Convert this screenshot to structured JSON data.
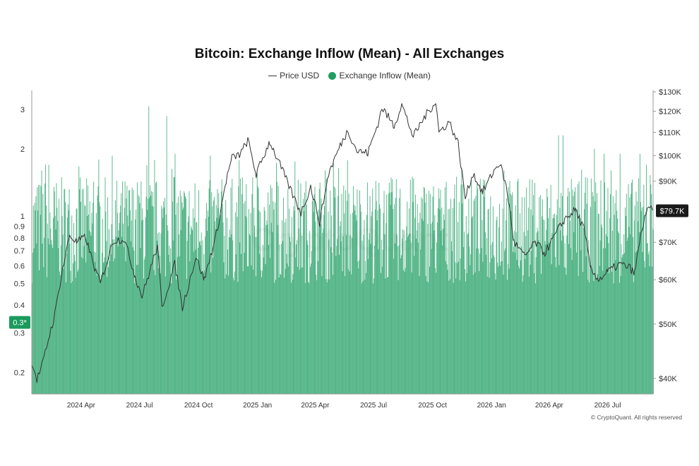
{
  "chart_data": {
    "type": "bar+line",
    "title": "Bitcoin: Exchange Inflow (Mean) - All Exchanges",
    "legend": [
      {
        "label": "Price USD",
        "kind": "line",
        "color": "#333333"
      },
      {
        "label": "Exchange Inflow (Mean)",
        "kind": "dot",
        "color": "#1f9e63"
      }
    ],
    "left_axis": {
      "scale": "log",
      "range": [
        0.16,
        3.6
      ],
      "ticks": [
        "3",
        "2",
        "1",
        "0.9",
        "0.8",
        "0.7",
        "0.6",
        "0.5",
        "0.4",
        "0.3",
        "0.2"
      ],
      "tick_values": [
        3,
        2,
        1,
        0.9,
        0.8,
        0.7,
        0.6,
        0.5,
        0.4,
        0.3,
        0.2
      ]
    },
    "right_axis": {
      "scale": "log",
      "range": [
        37500,
        130000
      ],
      "ticks": [
        "$130K",
        "$120K",
        "$110K",
        "$100K",
        "$90K",
        "$70K",
        "$60K",
        "$50K",
        "$40K"
      ],
      "tick_values": [
        130000,
        120000,
        110000,
        100000,
        90000,
        70000,
        60000,
        50000,
        40000
      ]
    },
    "x_axis": {
      "ticks": [
        "2024 Apr",
        "2024 Jul",
        "2024 Oct",
        "2025 Jan",
        "2025 Apr",
        "2025 Jul",
        "2025 Oct",
        "2026 Jan",
        "2026 Apr",
        "2026 Jul"
      ],
      "tick_dates": [
        "2024-04-01",
        "2024-07-01",
        "2024-10-01",
        "2025-01-01",
        "2025-04-01",
        "2025-07-01",
        "2025-10-01",
        "2026-01-01",
        "2026-04-01",
        "2026-07-01"
      ],
      "range": [
        "2024-01-15",
        "2026-09-10"
      ]
    },
    "current_inflow_label": "0.3*",
    "current_price_label": "$79.7K",
    "inflow_typical_range": [
      0.5,
      1.5
    ],
    "inflow_spikes": [
      {
        "date": "2024-01-30",
        "value": 1.6
      },
      {
        "date": "2024-02-05",
        "value": 1.7
      },
      {
        "date": "2024-07-15",
        "value": 3.1
      },
      {
        "date": "2024-08-12",
        "value": 2.8
      },
      {
        "date": "2024-08-25",
        "value": 1.9
      },
      {
        "date": "2025-04-10",
        "value": 1.2
      },
      {
        "date": "2025-08-30",
        "value": 1.5
      },
      {
        "date": "2026-01-20",
        "value": 1.6
      },
      {
        "date": "2026-04-15",
        "value": 2.3
      },
      {
        "date": "2026-04-22",
        "value": 2.3
      },
      {
        "date": "2026-06-10",
        "value": 2.0
      },
      {
        "date": "2026-06-25",
        "value": 1.9
      },
      {
        "date": "2026-07-20",
        "value": 1.9
      },
      {
        "date": "2026-08-20",
        "value": 1.9
      },
      {
        "date": "2026-08-30",
        "value": 1.7
      }
    ],
    "price_series": [
      {
        "date": "2024-01-15",
        "value": 43000
      },
      {
        "date": "2024-01-23",
        "value": 39800
      },
      {
        "date": "2024-02-01",
        "value": 42500
      },
      {
        "date": "2024-02-10",
        "value": 47000
      },
      {
        "date": "2024-02-20",
        "value": 52000
      },
      {
        "date": "2024-03-01",
        "value": 61000
      },
      {
        "date": "2024-03-14",
        "value": 72000
      },
      {
        "date": "2024-03-25",
        "value": 70000
      },
      {
        "date": "2024-04-08",
        "value": 71500
      },
      {
        "date": "2024-04-20",
        "value": 64000
      },
      {
        "date": "2024-05-01",
        "value": 59000
      },
      {
        "date": "2024-05-21",
        "value": 70500
      },
      {
        "date": "2024-06-07",
        "value": 71000
      },
      {
        "date": "2024-06-24",
        "value": 61000
      },
      {
        "date": "2024-07-05",
        "value": 56000
      },
      {
        "date": "2024-07-29",
        "value": 69000
      },
      {
        "date": "2024-08-05",
        "value": 53500
      },
      {
        "date": "2024-08-25",
        "value": 64000
      },
      {
        "date": "2024-09-06",
        "value": 53500
      },
      {
        "date": "2024-09-27",
        "value": 66000
      },
      {
        "date": "2024-10-10",
        "value": 60000
      },
      {
        "date": "2024-10-29",
        "value": 72500
      },
      {
        "date": "2024-11-13",
        "value": 90000
      },
      {
        "date": "2024-11-22",
        "value": 99000
      },
      {
        "date": "2024-12-05",
        "value": 100500
      },
      {
        "date": "2024-12-17",
        "value": 106500
      },
      {
        "date": "2024-12-30",
        "value": 92500
      },
      {
        "date": "2025-01-20",
        "value": 106000
      },
      {
        "date": "2025-02-03",
        "value": 97500
      },
      {
        "date": "2025-02-27",
        "value": 84000
      },
      {
        "date": "2025-03-10",
        "value": 79000
      },
      {
        "date": "2025-03-25",
        "value": 88000
      },
      {
        "date": "2025-04-08",
        "value": 76000
      },
      {
        "date": "2025-04-22",
        "value": 93000
      },
      {
        "date": "2025-05-08",
        "value": 103000
      },
      {
        "date": "2025-05-22",
        "value": 111000
      },
      {
        "date": "2025-06-05",
        "value": 102000
      },
      {
        "date": "2025-06-22",
        "value": 101000
      },
      {
        "date": "2025-07-10",
        "value": 116000
      },
      {
        "date": "2025-07-14",
        "value": 122000
      },
      {
        "date": "2025-08-02",
        "value": 113000
      },
      {
        "date": "2025-08-14",
        "value": 123500
      },
      {
        "date": "2025-09-01",
        "value": 108000
      },
      {
        "date": "2025-09-18",
        "value": 117000
      },
      {
        "date": "2025-10-06",
        "value": 125000
      },
      {
        "date": "2025-10-11",
        "value": 110000
      },
      {
        "date": "2025-10-27",
        "value": 115000
      },
      {
        "date": "2025-11-10",
        "value": 105000
      },
      {
        "date": "2025-11-21",
        "value": 84000
      },
      {
        "date": "2025-12-03",
        "value": 93000
      },
      {
        "date": "2025-12-18",
        "value": 86000
      },
      {
        "date": "2026-01-05",
        "value": 94000
      },
      {
        "date": "2026-01-14",
        "value": 97000
      },
      {
        "date": "2026-01-25",
        "value": 87000
      },
      {
        "date": "2026-02-05",
        "value": 70000
      },
      {
        "date": "2026-02-22",
        "value": 66000
      },
      {
        "date": "2026-03-10",
        "value": 70000
      },
      {
        "date": "2026-03-25",
        "value": 67000
      },
      {
        "date": "2026-04-10",
        "value": 72000
      },
      {
        "date": "2026-04-25",
        "value": 77000
      },
      {
        "date": "2026-05-12",
        "value": 80000
      },
      {
        "date": "2026-05-25",
        "value": 74000
      },
      {
        "date": "2026-06-05",
        "value": 62500
      },
      {
        "date": "2026-06-18",
        "value": 60000
      },
      {
        "date": "2026-07-01",
        "value": 62000
      },
      {
        "date": "2026-07-20",
        "value": 64000
      },
      {
        "date": "2026-08-05",
        "value": 63000
      },
      {
        "date": "2026-08-12",
        "value": 61500
      },
      {
        "date": "2026-08-20",
        "value": 70000
      },
      {
        "date": "2026-08-28",
        "value": 78000
      },
      {
        "date": "2026-09-05",
        "value": 80500
      },
      {
        "date": "2026-09-10",
        "value": 79700
      }
    ],
    "colors": {
      "bars": "#1f9e63",
      "price_line": "#333333",
      "current_price_bg": "#1a1a1a",
      "current_inflow_bg": "#1a9a5c",
      "axis_text": "#333333"
    }
  },
  "watermark": "CryptoQuant",
  "copyright": "© CryptoQuant. All rights reserved"
}
